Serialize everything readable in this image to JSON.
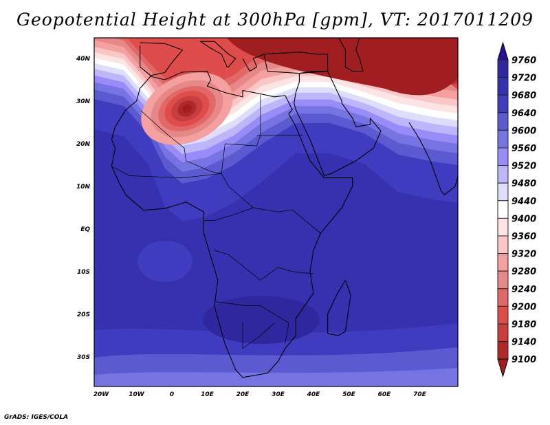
{
  "title": "Geopotential Height at 300hPa [gpm], VT: 2017011209",
  "footer": "GrADS: IGES/COLA",
  "map": {
    "region": "Africa",
    "variable": "Geopotential Height",
    "level": "300hPa",
    "units": "gpm",
    "valid_time": "2017011209",
    "lon_ticks": [
      "20W",
      "10W",
      "0",
      "10E",
      "20E",
      "30E",
      "40E",
      "50E",
      "60E",
      "70E"
    ],
    "lat_ticks": [
      "40N",
      "30N",
      "20N",
      "10N",
      "EQ",
      "10S",
      "20S",
      "30S"
    ]
  },
  "colorbar": {
    "labels": [
      "9760",
      "9720",
      "9680",
      "9640",
      "9600",
      "9560",
      "9520",
      "9480",
      "9440",
      "9400",
      "9360",
      "9320",
      "9280",
      "9240",
      "9200",
      "9180",
      "9140",
      "9100"
    ],
    "colors": [
      "#2a0c9c",
      "#30279e",
      "#3631ae",
      "#3f3cc0",
      "#5c5ad0",
      "#7674e2",
      "#9a8cf8",
      "#bdb6fa",
      "#dedefc",
      "#ffffff",
      "#fde4e4",
      "#fcc6c6",
      "#f5a0a0",
      "#e68888",
      "#e26868",
      "#de4c4c",
      "#c63e3e",
      "#b02828",
      "#a01e22"
    ]
  }
}
